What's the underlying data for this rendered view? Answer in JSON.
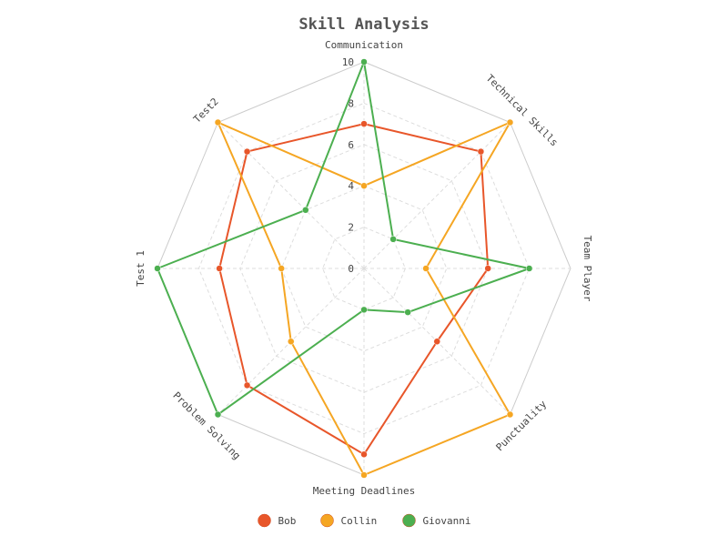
{
  "chart_data": {
    "type": "radar",
    "title": "Skill Analysis",
    "axes": [
      "Communication",
      "Technical Skills",
      "Team Player",
      "Punctuality",
      "Meeting Deadlines",
      "Problem Solving",
      "Test 1",
      "Test2"
    ],
    "range": [
      0,
      10
    ],
    "ticks": [
      0,
      2,
      4,
      6,
      8,
      10
    ],
    "grid": true,
    "legend_position": "bottom",
    "series": [
      {
        "name": "Bob",
        "color": "#e8562a",
        "values": [
          7,
          8,
          6,
          5,
          9,
          8,
          7,
          8
        ]
      },
      {
        "name": "Collin",
        "color": "#f5a623",
        "values": [
          4,
          10,
          3,
          10,
          10,
          5,
          4,
          10
        ]
      },
      {
        "name": "Giovanni",
        "color": "#4caf50",
        "values": [
          10,
          2,
          8,
          3,
          2,
          10,
          10,
          4
        ]
      }
    ]
  }
}
